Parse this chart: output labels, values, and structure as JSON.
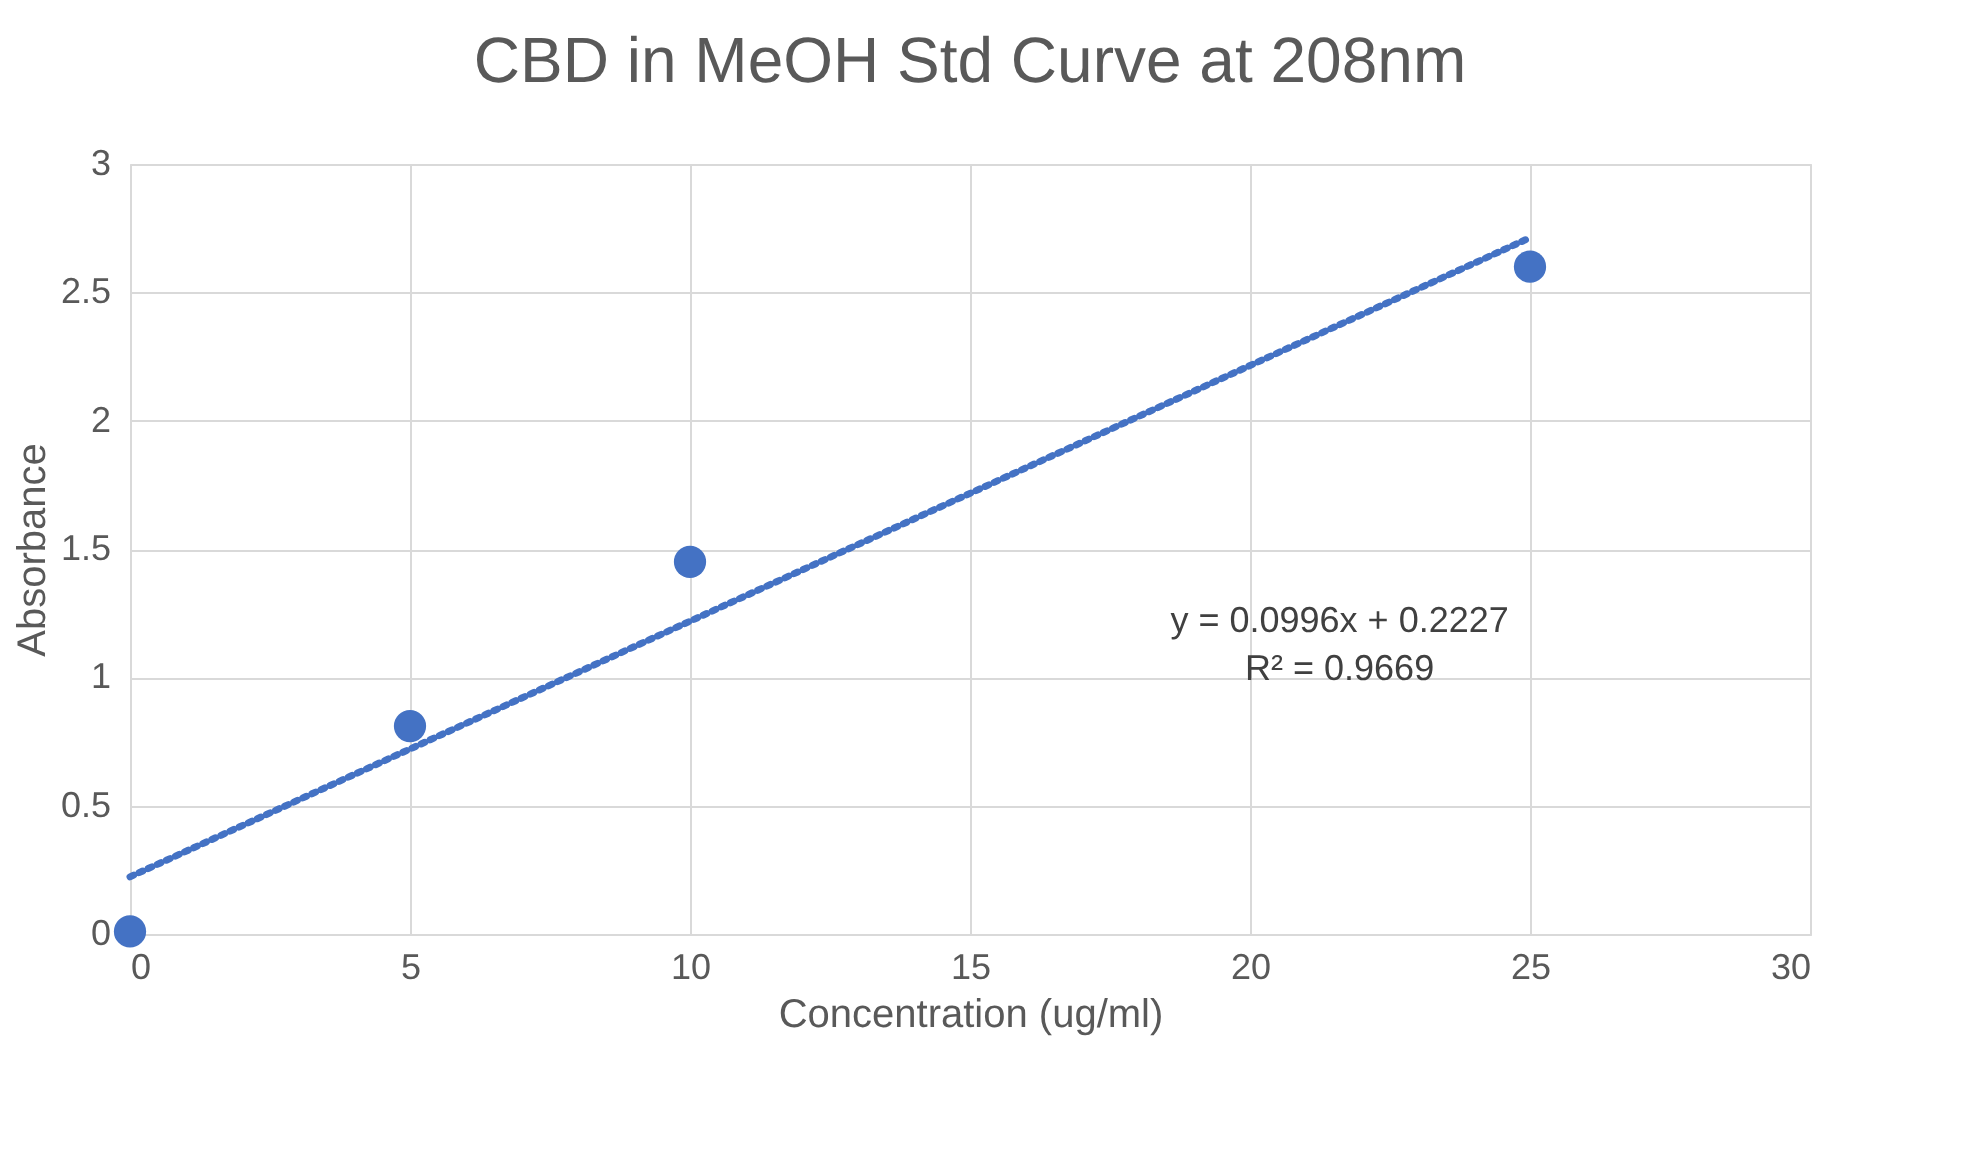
{
  "chart_data": {
    "type": "scatter",
    "title": "CBD in MeOH Std Curve at 208nm",
    "xlabel": "Concentration (ug/ml)",
    "ylabel": "Absorbance",
    "x": [
      0,
      5,
      10,
      25
    ],
    "series": [
      {
        "color": "#4472c4",
        "values": [
          0.01,
          0.81,
          1.45,
          2.6
        ],
        "marker": "circle"
      },
      {
        "type": "line",
        "color": "#4472c4",
        "x": [
          0,
          25
        ],
        "values": [
          0.2227,
          2.7127
        ],
        "line_style": "dotted"
      }
    ],
    "annotations": [
      "y = 0.0996x + 0.2227",
      "R² = 0.9669"
    ],
    "xlim": [
      0,
      30
    ],
    "xticks": [
      0,
      5,
      10,
      15,
      20,
      25,
      30
    ],
    "ylim": [
      0,
      3
    ],
    "yticks": [
      0,
      0.5,
      1,
      1.5,
      2,
      2.5,
      3
    ],
    "grid": true
  }
}
